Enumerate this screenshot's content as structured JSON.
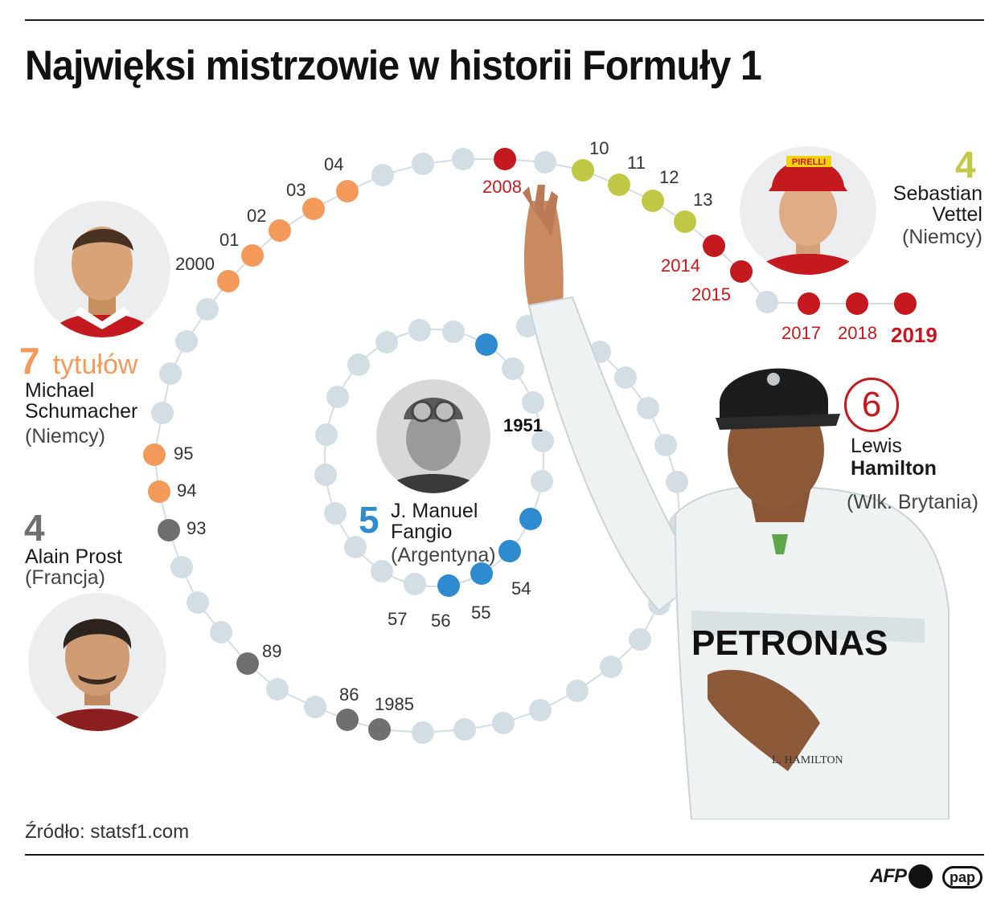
{
  "title": "Najwięksi mistrzowie w historii Formuły 1",
  "source": "Źródło: statsf1.com",
  "logos": {
    "afp": "AFP",
    "pap": "pap"
  },
  "colors": {
    "schumacher": "#f39a5b",
    "prost": "#6f6f6f",
    "fangio": "#2f8bd0",
    "vettel": "#c1c846",
    "hamilton": "#c3191f",
    "track": "#d3dde4"
  },
  "drivers": {
    "schumacher": {
      "titles": "7",
      "titles_word": "tytułów",
      "name_line1": "Michael",
      "name_line2": "Schumacher",
      "country": "(Niemcy)",
      "photo": "schumacher-portrait"
    },
    "prost": {
      "titles": "4",
      "name_line1": "Alain Prost",
      "country": "(Francja)",
      "photo": "prost-portrait"
    },
    "fangio": {
      "titles": "5",
      "name_line1": "J. Manuel",
      "name_line2": "Fangio",
      "country": "(Argentyna)",
      "photo": "fangio-portrait"
    },
    "vettel": {
      "titles": "4",
      "name_line1": "Sebastian",
      "name_line2": "Vettel",
      "country": "(Niemcy)",
      "photo": "vettel-portrait"
    },
    "hamilton": {
      "titles": "6",
      "name_line1": "Lewis",
      "name_line2": "Hamilton",
      "country": "(Wlk. Brytania)",
      "photo": "hamilton-waving-photo"
    }
  },
  "year_labels": {
    "schumacher": [
      "2000",
      "01",
      "02",
      "03",
      "04",
      "95",
      "94"
    ],
    "prost": [
      "93",
      "89",
      "86",
      "1985"
    ],
    "fangio": [
      "1951",
      "54",
      "55",
      "56",
      "57"
    ],
    "vettel": [
      "10",
      "11",
      "12",
      "13"
    ],
    "hamilton": [
      "2008",
      "2014",
      "2015",
      "2017",
      "2018",
      "2019"
    ]
  },
  "photo_text": {
    "vettel_cap": "PIRELLI",
    "hamilton_shirt": "PETRONAS",
    "hamilton_badge": "L. HAMILTON"
  }
}
